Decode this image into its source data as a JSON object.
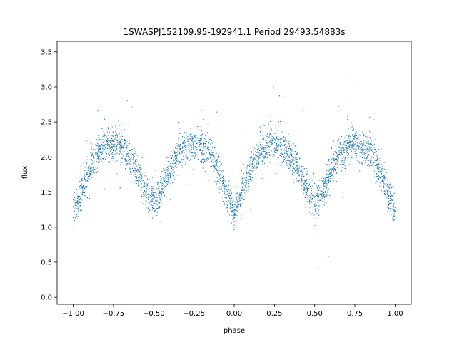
{
  "chart_data": {
    "type": "scatter",
    "title": "1SWASPJ152109.95-192941.1 Period 29493.54883s",
    "xlabel": "phase",
    "ylabel": "flux",
    "xlim": [
      -1.1,
      1.1
    ],
    "ylim": [
      -0.1,
      3.65
    ],
    "xticks": [
      -1.0,
      -0.75,
      -0.5,
      -0.25,
      0.0,
      0.25,
      0.5,
      0.75,
      1.0
    ],
    "xtick_labels": [
      "−1.00",
      "−0.75",
      "−0.50",
      "−0.25",
      "0.00",
      "0.25",
      "0.50",
      "0.75",
      "1.00"
    ],
    "yticks": [
      0.0,
      0.5,
      1.0,
      1.5,
      2.0,
      2.5,
      3.0,
      3.5
    ],
    "ytick_labels": [
      "0.0",
      "0.5",
      "1.0",
      "1.5",
      "2.0",
      "2.5",
      "3.0",
      "3.5"
    ],
    "grid": false,
    "point_color": "#1f77b4",
    "series": [
      {
        "x": [
          -1.0,
          -0.95,
          -0.9,
          -0.85,
          -0.8,
          -0.75,
          -0.7,
          -0.65,
          -0.6,
          -0.55,
          -0.5,
          -0.45,
          -0.4,
          -0.35,
          -0.3,
          -0.25,
          -0.2,
          -0.15,
          -0.1,
          -0.05,
          0.0,
          0.05,
          0.1,
          0.15,
          0.2,
          0.25,
          0.3,
          0.35,
          0.4,
          0.45,
          0.5,
          0.55,
          0.6,
          0.65,
          0.7,
          0.75,
          0.8,
          0.85,
          0.9,
          0.95,
          1.0
        ],
        "y": [
          1.2,
          1.5,
          1.8,
          2.05,
          2.15,
          2.2,
          2.15,
          2.0,
          1.8,
          1.55,
          1.35,
          1.5,
          1.8,
          2.05,
          2.15,
          2.2,
          2.15,
          2.05,
          1.8,
          1.5,
          1.2,
          1.5,
          1.8,
          2.05,
          2.15,
          2.2,
          2.15,
          2.0,
          1.8,
          1.55,
          1.35,
          1.5,
          1.8,
          2.05,
          2.15,
          2.2,
          2.15,
          2.05,
          1.8,
          1.5,
          1.2
        ],
        "scatter_spread": 0.12
      }
    ]
  }
}
